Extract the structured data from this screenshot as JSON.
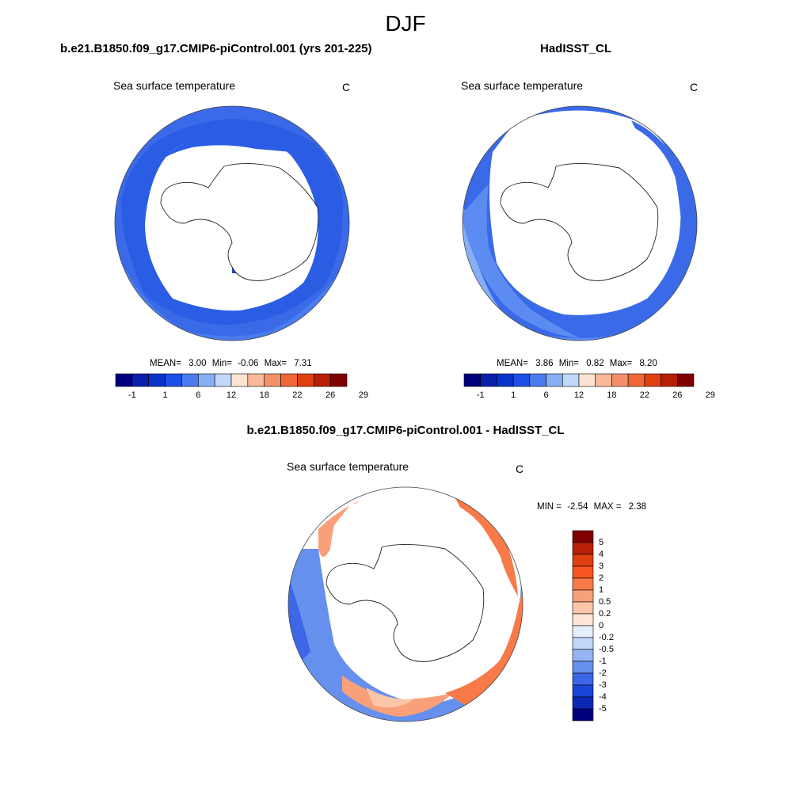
{
  "title": "DJF",
  "panels": [
    {
      "title": "b.e21.B1850.f09_g17.CMIP6-piControl.001 (yrs 201-225)",
      "variable": "Sea surface temperature",
      "units": "C",
      "stats": {
        "mean_label": "MEAN=",
        "mean": "3.00",
        "min_label": "Min=",
        "min": "-0.06",
        "max_label": "Max=",
        "max": "7.31"
      }
    },
    {
      "title": "HadISST_CL",
      "variable": "Sea surface temperature",
      "units": "C",
      "stats": {
        "mean_label": "MEAN=",
        "mean": "3.86",
        "min_label": "Min=",
        "min": "0.82",
        "max_label": "Max=",
        "max": "8.20"
      }
    },
    {
      "title": "b.e21.B1850.f09_g17.CMIP6-piControl.001 - HadISST_CL",
      "variable": "Sea surface temperature",
      "units": "C",
      "stats": {
        "min_label": "MIN =",
        "min": "-2.54",
        "max_label": "MAX =",
        "max": "2.38"
      }
    }
  ],
  "colorbar_abs": {
    "ticks": [
      "-1",
      "1",
      "6",
      "12",
      "18",
      "22",
      "26",
      "29"
    ],
    "colors": [
      "#00007f",
      "#0a1faa",
      "#0833c8",
      "#1e50e8",
      "#4a7cf0",
      "#87aef5",
      "#c2d8fa",
      "#fde4d2",
      "#f9b89a",
      "#f58f6a",
      "#f06838",
      "#e0400f",
      "#b82005",
      "#800000"
    ]
  },
  "colorbar_diff": {
    "ticks": [
      "5",
      "4",
      "3",
      "2",
      "1",
      "0.5",
      "0.2",
      "0",
      "-0.2",
      "-0.5",
      "-1",
      "-2",
      "-3",
      "-4",
      "-5"
    ],
    "colors": [
      "#800000",
      "#b82005",
      "#e0400f",
      "#f75520",
      "#f87a48",
      "#f9a07a",
      "#fbc6a8",
      "#fde6d8",
      "#e6eefb",
      "#c2d6f8",
      "#94b4f3",
      "#6690ee",
      "#3c68e8",
      "#1b45d8",
      "#0a28b4",
      "#00007f"
    ]
  }
}
